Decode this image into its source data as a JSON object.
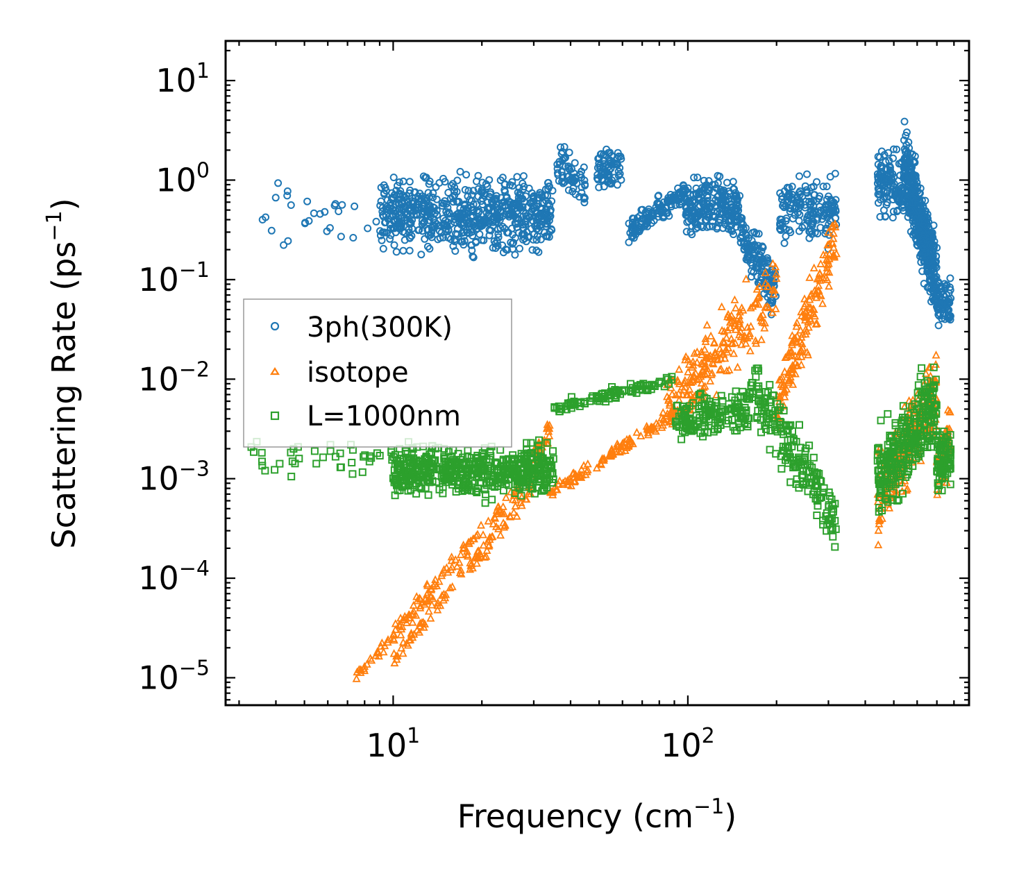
{
  "chart_data": {
    "type": "scatter",
    "xlabel": "Frequency (cm",
    "xlabel_sup": "−1",
    "xlabel_suffix": ")",
    "ylabel": "Scattering Rate (ps",
    "ylabel_sup": "−1",
    "ylabel_suffix": ")",
    "xscale": "log",
    "yscale": "log",
    "xlim": [
      2.7,
      900
    ],
    "ylim": [
      5.3e-06,
      25
    ],
    "x_ticks": [
      {
        "value": 10,
        "base": "10",
        "exp": "1"
      },
      {
        "value": 100,
        "base": "10",
        "exp": "2"
      }
    ],
    "y_ticks": [
      {
        "value": 10,
        "base": "10",
        "exp": "1"
      },
      {
        "value": 1,
        "base": "10",
        "exp": "0"
      },
      {
        "value": 0.1,
        "base": "10",
        "exp": "−1"
      },
      {
        "value": 0.01,
        "base": "10",
        "exp": "−2"
      },
      {
        "value": 0.001,
        "base": "10",
        "exp": "−3"
      },
      {
        "value": 0.0001,
        "base": "10",
        "exp": "−4"
      },
      {
        "value": 1e-05,
        "base": "10",
        "exp": "−5"
      }
    ],
    "legend_position": "center-left",
    "series": [
      {
        "name": "3ph(300K)",
        "marker": "circle",
        "color": "#1f77b4",
        "segments": [
          {
            "x0": 3.3,
            "x1": 9,
            "y0": 0.4,
            "spread": 0.55,
            "slope": 0,
            "n": 28
          },
          {
            "x0": 9,
            "x1": 35,
            "y0": 0.45,
            "spread": 0.5,
            "slope": 0,
            "n": 650
          },
          {
            "x0": 36,
            "x1": 45,
            "y0": 1.5,
            "spread": 0.35,
            "slope": -0.3,
            "n": 60
          },
          {
            "x0": 49,
            "x1": 60,
            "y0": 1.3,
            "spread": 0.3,
            "slope": 0,
            "n": 70
          },
          {
            "x0": 63,
            "x1": 98,
            "y0": 0.3,
            "spread": 0.18,
            "slope": 0.4,
            "n": 130
          },
          {
            "x0": 98,
            "x1": 150,
            "y0": 0.55,
            "spread": 0.4,
            "slope": 0,
            "n": 230
          },
          {
            "x0": 150,
            "x1": 200,
            "y0": 0.3,
            "spread": 0.4,
            "slope": -0.6,
            "n": 130
          },
          {
            "x0": 205,
            "x1": 320,
            "y0": 0.5,
            "spread": 0.45,
            "slope": 0,
            "n": 170
          },
          {
            "x0": 440,
            "x1": 540,
            "y0": 0.9,
            "spread": 0.45,
            "slope": 0,
            "n": 120
          },
          {
            "x0": 540,
            "x1": 700,
            "y0": 1.5,
            "spread": 0.55,
            "slope": -1.2,
            "n": 450
          },
          {
            "x0": 700,
            "x1": 780,
            "y0": 0.06,
            "spread": 0.3,
            "slope": 0,
            "n": 70
          }
        ]
      },
      {
        "name": "isotope",
        "marker": "triangle",
        "color": "#ff7f0e",
        "segments": [
          {
            "x0": 7.5,
            "x1": 30,
            "y0": 1e-05,
            "y1": 0.0012,
            "spread": 0.15,
            "n": 140
          },
          {
            "x0": 10,
            "x1": 30,
            "y0": 1.5e-05,
            "y1": 0.0008,
            "spread": 0.12,
            "n": 90
          },
          {
            "x0": 30,
            "x1": 34,
            "y0": 0.0015,
            "y1": 0.003,
            "spread": 0.2,
            "n": 40
          },
          {
            "x0": 34,
            "x1": 95,
            "y0": 0.0007,
            "y1": 0.005,
            "spread": 0.1,
            "n": 120
          },
          {
            "x0": 85,
            "x1": 200,
            "y0": 0.005,
            "y1": 0.08,
            "spread": 0.5,
            "n": 220
          },
          {
            "x0": 200,
            "x1": 320,
            "y0": 0.005,
            "y1": 0.3,
            "spread": 0.45,
            "n": 160
          },
          {
            "x0": 440,
            "x1": 700,
            "y0": 0.0006,
            "y1": 0.008,
            "spread": 0.55,
            "n": 250
          },
          {
            "x0": 700,
            "x1": 780,
            "y0": 0.001,
            "y1": 0.003,
            "spread": 0.4,
            "n": 60
          }
        ]
      },
      {
        "name": "L=1000nm",
        "marker": "square",
        "color": "#2ca02c",
        "segments": [
          {
            "x0": 3.3,
            "x1": 10,
            "y0": 0.0016,
            "y1": 0.0016,
            "spread": 0.25,
            "n": 40
          },
          {
            "x0": 10,
            "x1": 35,
            "y0": 0.0012,
            "y1": 0.0012,
            "spread": 0.35,
            "n": 550
          },
          {
            "x0": 35,
            "x1": 90,
            "y0": 0.005,
            "y1": 0.01,
            "spread": 0.08,
            "n": 100
          },
          {
            "x0": 90,
            "x1": 160,
            "y0": 0.004,
            "y1": 0.005,
            "spread": 0.3,
            "n": 150
          },
          {
            "x0": 160,
            "x1": 320,
            "y0": 0.009,
            "y1": 0.0004,
            "spread": 0.45,
            "n": 200
          },
          {
            "x0": 440,
            "x1": 700,
            "y0": 0.001,
            "y1": 0.006,
            "spread": 0.6,
            "n": 300
          },
          {
            "x0": 700,
            "x1": 780,
            "y0": 0.0015,
            "y1": 0.0015,
            "spread": 0.4,
            "n": 80
          }
        ]
      }
    ]
  }
}
